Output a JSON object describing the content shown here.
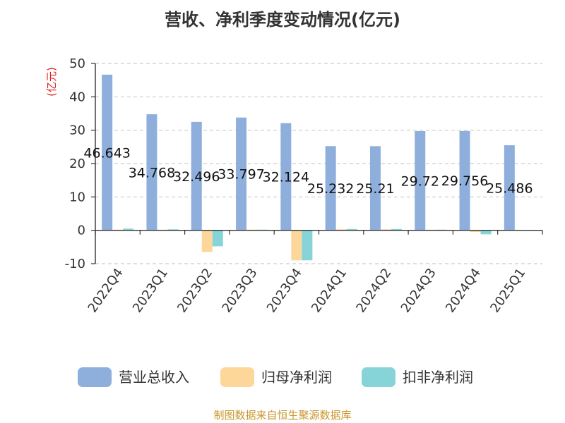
{
  "chart_data": {
    "type": "bar",
    "title": "营收、净利季度变动情况(亿元)",
    "unit_label": "(亿元)",
    "categories": [
      "2022Q4",
      "2023Q1",
      "2023Q2",
      "2023Q3",
      "2023Q4",
      "2024Q1",
      "2024Q2",
      "2024Q3",
      "2024Q4",
      "2025Q1"
    ],
    "series": [
      {
        "name": "营业总收入",
        "color": "#8eafdc",
        "values": [
          46.643,
          34.768,
          32.496,
          33.797,
          32.124,
          25.232,
          25.21,
          29.72,
          29.756,
          25.486
        ],
        "labels": [
          "46.643",
          "34.768",
          "32.496",
          "33.797",
          "32.124",
          "25.232",
          "25.21",
          "29.72",
          "29.756",
          "25.486"
        ]
      },
      {
        "name": "归母净利润",
        "color": "#fdd699",
        "values": [
          0.2,
          0.2,
          -6.5,
          0.2,
          -9.0,
          0.3,
          0.3,
          0.2,
          -0.5,
          null
        ]
      },
      {
        "name": "扣非净利润",
        "color": "#86d4d8",
        "values": [
          0.5,
          0.3,
          -4.8,
          0.2,
          -9.0,
          0.4,
          0.4,
          0.2,
          -1.2,
          null
        ]
      }
    ],
    "ylim": [
      -10,
      50
    ],
    "yticks": [
      -10,
      0,
      10,
      20,
      30,
      40,
      50
    ],
    "grid": true,
    "legend_position": "bottom"
  },
  "source": "制图数据来自恒生聚源数据库"
}
